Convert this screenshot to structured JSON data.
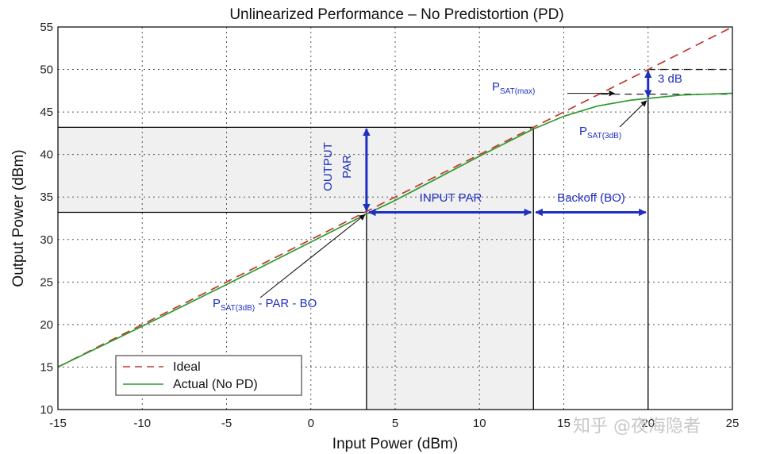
{
  "chart_data": {
    "type": "line",
    "title": "Unlinearized Performance – No Predistortion (PD)",
    "xlabel": "Input Power (dBm)",
    "ylabel": "Output Power (dBm)",
    "xlim": [
      -15,
      25
    ],
    "ylim": [
      10,
      55
    ],
    "xticks": [
      -15,
      -10,
      -5,
      0,
      5,
      10,
      15,
      20,
      25
    ],
    "yticks": [
      10,
      15,
      20,
      25,
      30,
      35,
      40,
      45,
      50,
      55
    ],
    "xtick_labels": [
      "-15",
      "-10",
      "-5",
      "0",
      "5",
      "10",
      "15",
      "20",
      "25"
    ],
    "ytick_labels": [
      "10",
      "15",
      "20",
      "25",
      "30",
      "35",
      "40",
      "45",
      "50",
      "55"
    ],
    "grid": true,
    "legend_position": "bottom-left",
    "series": [
      {
        "name": "Ideal",
        "style": "dashed",
        "color": "#c0392b",
        "x": [
          -15,
          -10,
          -5,
          0,
          5,
          10,
          15,
          20,
          25
        ],
        "y": [
          15,
          20,
          25,
          30,
          35,
          40,
          45,
          50,
          55
        ]
      },
      {
        "name": "Actual (No PD)",
        "style": "solid",
        "color": "#2e9a2e",
        "x": [
          -15,
          -10,
          -5,
          0,
          3.3,
          5,
          10,
          13.2,
          15,
          17,
          19,
          20,
          22,
          25
        ],
        "y": [
          15,
          19.8,
          24.7,
          29.7,
          33.0,
          34.6,
          39.8,
          43.0,
          44.5,
          45.7,
          46.4,
          46.6,
          47.0,
          47.2
        ]
      }
    ],
    "regions": [
      {
        "name": "output-par-band",
        "x": [
          -15,
          13.2
        ],
        "y": [
          33.2,
          43.2
        ],
        "color": "#f0f0f0"
      },
      {
        "name": "input-par-band",
        "x": [
          3.3,
          13.2
        ],
        "y": [
          10,
          33.2
        ],
        "color": "#f0f0f0"
      }
    ],
    "reference_lines": {
      "operating_point": {
        "x": 3.3,
        "y": 33.2
      },
      "par_peak": {
        "x": 13.2,
        "y": 43.2
      },
      "sat_point": {
        "x": 20,
        "y": 46.6
      },
      "psat_max_level": 47.1,
      "ideal_at_sat": 50
    },
    "annotations": {
      "output_par_line1": "OUTPUT",
      "output_par_line2": "PAR",
      "input_par": "INPUT PAR",
      "backoff": "Backoff (BO)",
      "three_db": "3 dB",
      "psat_max_main": "P",
      "psat_max_sub": "SAT(max)",
      "psat_3db_main": "P",
      "psat_3db_sub": "SAT(3dB)",
      "op_main": "P",
      "op_sub": "SAT(3dB)",
      "op_rest": " - PAR - BO"
    },
    "annotation_color": "#1f2fbf"
  },
  "watermark": "知乎 @夜海隐者"
}
